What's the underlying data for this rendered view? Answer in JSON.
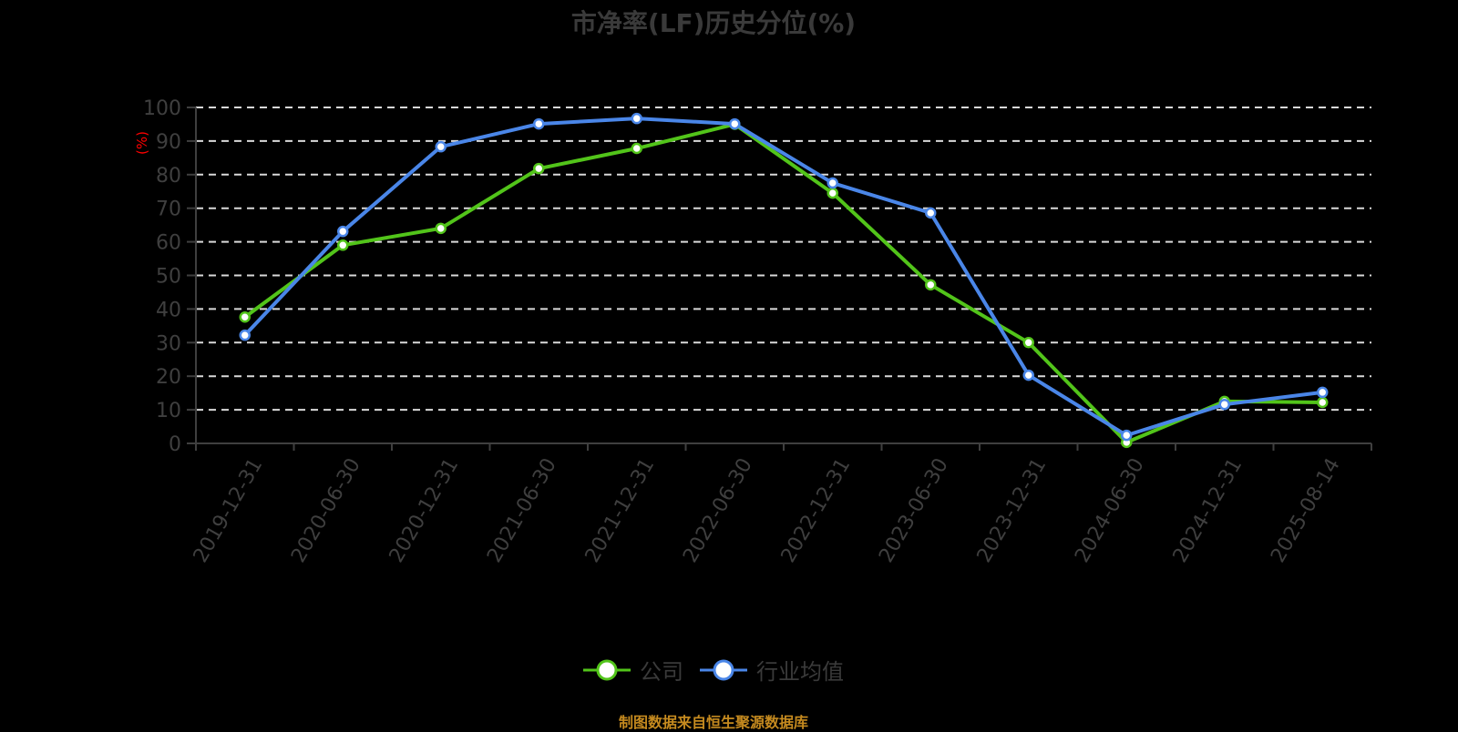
{
  "chart": {
    "title": "市净率(LF)历史分位(%)",
    "y_axis_unit": "(%)",
    "legend": [
      {
        "label": "公司",
        "color": "#52c41a"
      },
      {
        "label": "行业均值",
        "color": "#4a86e8"
      }
    ],
    "footer": "制图数据来自恒生聚源数据库"
  },
  "chart_data": {
    "type": "line",
    "title": "市净率(LF)历史分位(%)",
    "xlabel": "",
    "ylabel": "(%)",
    "ylim": [
      0,
      100
    ],
    "yticks": [
      0,
      10,
      20,
      30,
      40,
      50,
      60,
      70,
      80,
      90,
      100
    ],
    "grid": true,
    "legend_position": "bottom",
    "categories": [
      "2019-12-31",
      "2020-06-30",
      "2020-12-31",
      "2021-06-30",
      "2021-12-31",
      "2022-06-30",
      "2022-12-31",
      "2023-06-30",
      "2023-12-31",
      "2024-06-30",
      "2024-12-31",
      "2025-08-14"
    ],
    "series": [
      {
        "name": "公司",
        "color": "#52c41a",
        "values": [
          37.6,
          59.0,
          64.0,
          81.8,
          87.8,
          95.0,
          74.5,
          47.2,
          30.0,
          0.3,
          12.5,
          12.2
        ]
      },
      {
        "name": "行业均值",
        "color": "#4a86e8",
        "values": [
          32.2,
          63.1,
          88.3,
          95.1,
          96.7,
          95.1,
          77.5,
          68.6,
          20.3,
          2.4,
          11.6,
          15.2
        ]
      }
    ]
  }
}
